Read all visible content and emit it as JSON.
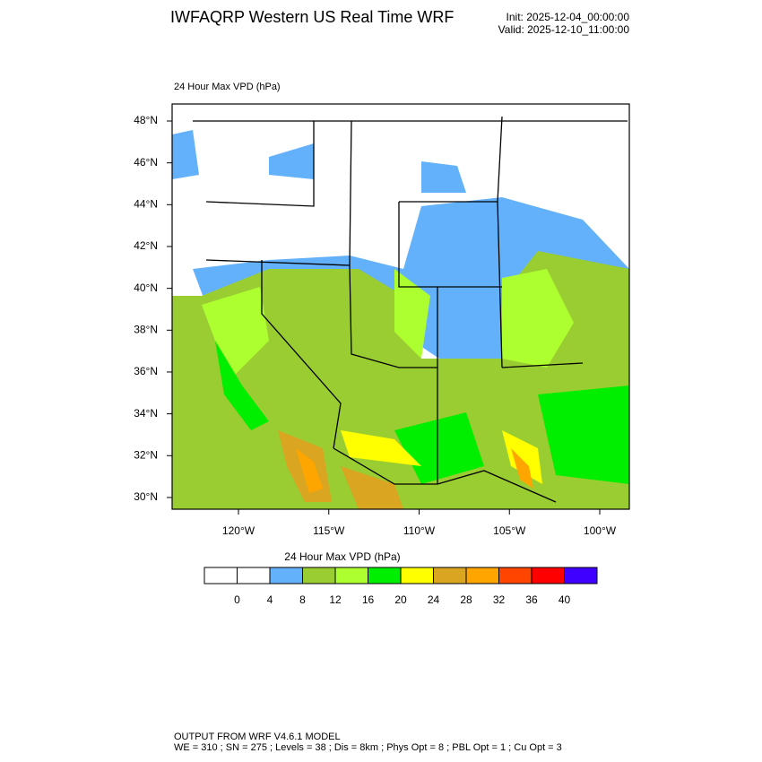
{
  "header": {
    "title": "IWFAQRP Western US Real Time WRF",
    "init": "Init: 2025-12-04_00:00:00",
    "valid": "Valid: 2025-12-10_11:00:00"
  },
  "map": {
    "title": "24 Hour Max VPD   (hPa)",
    "lat_ticks": [
      {
        "value": 48,
        "label": "48°N"
      },
      {
        "value": 46,
        "label": "46°N"
      },
      {
        "value": 44,
        "label": "44°N"
      },
      {
        "value": 42,
        "label": "42°N"
      },
      {
        "value": 40,
        "label": "40°N"
      },
      {
        "value": 38,
        "label": "38°N"
      },
      {
        "value": 36,
        "label": "36°N"
      },
      {
        "value": 34,
        "label": "34°N"
      },
      {
        "value": 32,
        "label": "32°N"
      },
      {
        "value": 30,
        "label": "30°N"
      }
    ],
    "lon_ticks": [
      {
        "value": -120,
        "label": "120°W"
      },
      {
        "value": -115,
        "label": "115°W"
      },
      {
        "value": -110,
        "label": "110°W"
      },
      {
        "value": -105,
        "label": "105°W"
      },
      {
        "value": -100,
        "label": "100°W"
      }
    ]
  },
  "colorbar": {
    "title": "24 Hour Max VPD  (hPa)",
    "levels": [
      0,
      4,
      8,
      12,
      16,
      20,
      24,
      28,
      32,
      36,
      40
    ],
    "colors": [
      "#ffffff",
      "#ffffff",
      "#63b1fa",
      "#9acd32",
      "#adff2f",
      "#00ee00",
      "#ffff00",
      "#daa520",
      "#ffa500",
      "#ff4500",
      "#ff0000",
      "#3f00ff"
    ]
  },
  "footer": {
    "line1": "OUTPUT FROM WRF V4.6.1 MODEL",
    "line2": "WE = 310 ; SN = 275 ; Levels = 38 ; Dis = 8km ; Phys Opt = 8 ; PBL Opt = 1 ; Cu Opt = 3"
  }
}
